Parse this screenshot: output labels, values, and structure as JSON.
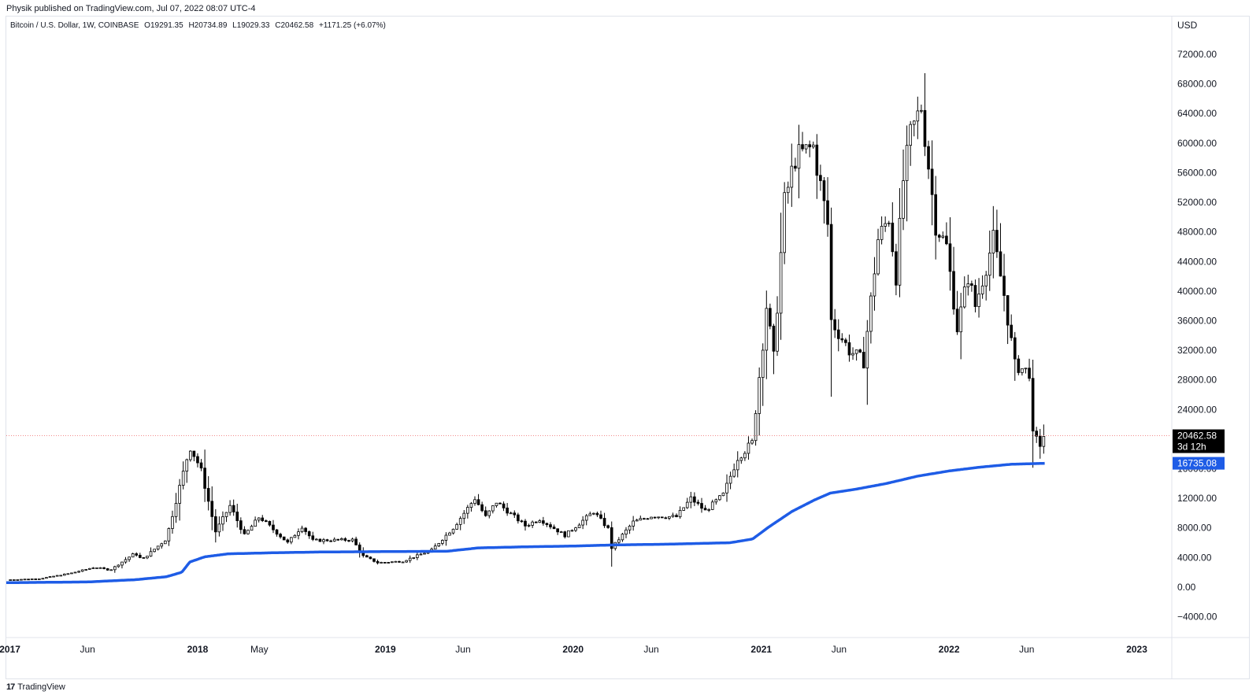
{
  "header": {
    "published": "Physik published on TradingView.com, Jul 07, 2022 08:07 UTC-4"
  },
  "legend": {
    "symbol": "Bitcoin / U.S. Dollar, 1W, COINBASE",
    "open": "O19291.35",
    "high": "H20734.89",
    "low": "L19029.33",
    "close": "C20462.58",
    "change": "+1171.25 (+6.07%)"
  },
  "footer": {
    "brand": "TradingView"
  },
  "colors": {
    "candle": "#000000",
    "ma_line": "#1e5ce6",
    "price_line": "#f28b8b",
    "ma_label_bg": "#1e5ce6",
    "price_label_bg": "#000000"
  },
  "chart_data": {
    "type": "candlestick",
    "currency_label": "USD",
    "y_ticks": [
      72000,
      68000,
      64000,
      60000,
      56000,
      52000,
      48000,
      44000,
      40000,
      36000,
      32000,
      28000,
      24000,
      20000,
      16000,
      12000,
      8000,
      4000,
      0,
      -4000
    ],
    "y_tick_labels": [
      "72000.00",
      "68000.00",
      "64000.00",
      "60000.00",
      "56000.00",
      "52000.00",
      "48000.00",
      "44000.00",
      "40000.00",
      "36000.00",
      "32000.00",
      "28000.00",
      "24000.00",
      "20000.00",
      "16000.00",
      "12000.00",
      "8000.00",
      "4000.00",
      "0.00",
      "−4000.00"
    ],
    "ylim": [
      -6600,
      77000
    ],
    "xlim": [
      "2016-12-25",
      "2023-03-07"
    ],
    "x_ticks": [
      {
        "date": "2017-01-01",
        "label": "2017",
        "bold": true
      },
      {
        "date": "2017-06-01",
        "label": "Jun",
        "bold": false
      },
      {
        "date": "2018-01-01",
        "label": "2018",
        "bold": true
      },
      {
        "date": "2018-05-01",
        "label": "May",
        "bold": false
      },
      {
        "date": "2019-01-01",
        "label": "2019",
        "bold": true
      },
      {
        "date": "2019-06-01",
        "label": "Jun",
        "bold": false
      },
      {
        "date": "2020-01-01",
        "label": "2020",
        "bold": true
      },
      {
        "date": "2020-06-01",
        "label": "Jun",
        "bold": false
      },
      {
        "date": "2021-01-01",
        "label": "2021",
        "bold": true
      },
      {
        "date": "2021-06-01",
        "label": "Jun",
        "bold": false
      },
      {
        "date": "2022-01-01",
        "label": "2022",
        "bold": true
      },
      {
        "date": "2022-06-01",
        "label": "Jun",
        "bold": false
      },
      {
        "date": "2023-01-01",
        "label": "2023",
        "bold": true
      }
    ],
    "price_anchors": [
      [
        "2017-01-01",
        1000
      ],
      [
        "2017-03-01",
        1150
      ],
      [
        "2017-05-01",
        1900
      ],
      [
        "2017-06-15",
        2700
      ],
      [
        "2017-07-15",
        2300
      ],
      [
        "2017-09-01",
        4600
      ],
      [
        "2017-09-15",
        3700
      ],
      [
        "2017-11-01",
        6500
      ],
      [
        "2017-12-17",
        19000
      ],
      [
        "2018-01-07",
        16000
      ],
      [
        "2018-02-05",
        7500
      ],
      [
        "2018-03-05",
        11000
      ],
      [
        "2018-04-02",
        7000
      ],
      [
        "2018-05-01",
        9500
      ],
      [
        "2018-06-25",
        6000
      ],
      [
        "2018-07-23",
        8200
      ],
      [
        "2018-08-13",
        6300
      ],
      [
        "2018-10-29",
        6400
      ],
      [
        "2018-11-19",
        4200
      ],
      [
        "2018-12-17",
        3300
      ],
      [
        "2019-02-04",
        3500
      ],
      [
        "2019-04-01",
        5000
      ],
      [
        "2019-05-13",
        8000
      ],
      [
        "2019-06-24",
        12000
      ],
      [
        "2019-07-15",
        9500
      ],
      [
        "2019-08-05",
        11500
      ],
      [
        "2019-09-30",
        8300
      ],
      [
        "2019-10-28",
        9200
      ],
      [
        "2019-12-16",
        7000
      ],
      [
        "2020-02-10",
        10200
      ],
      [
        "2020-03-09",
        7900
      ],
      [
        "2020-03-16",
        5300
      ],
      [
        "2020-04-27",
        8800
      ],
      [
        "2020-06-01",
        9600
      ],
      [
        "2020-07-20",
        9500
      ],
      [
        "2020-08-17",
        12000
      ],
      [
        "2020-09-14",
        10300
      ],
      [
        "2020-10-19",
        12500
      ],
      [
        "2020-11-16",
        17500
      ],
      [
        "2020-12-14",
        19500
      ],
      [
        "2021-01-04",
        33000
      ],
      [
        "2021-01-11",
        38000
      ],
      [
        "2021-01-25",
        31000
      ],
      [
        "2021-02-15",
        52000
      ],
      [
        "2021-03-08",
        58000
      ],
      [
        "2021-04-12",
        59500
      ],
      [
        "2021-05-10",
        49000
      ],
      [
        "2021-05-17",
        36000
      ],
      [
        "2021-06-21",
        32000
      ],
      [
        "2021-07-19",
        30500
      ],
      [
        "2021-08-16",
        47000
      ],
      [
        "2021-09-06",
        50000
      ],
      [
        "2021-09-20",
        42000
      ],
      [
        "2021-10-04",
        55000
      ],
      [
        "2021-10-18",
        61000
      ],
      [
        "2021-11-08",
        65000
      ],
      [
        "2021-11-22",
        57000
      ],
      [
        "2021-12-06",
        49000
      ],
      [
        "2021-12-27",
        46000
      ],
      [
        "2022-01-17",
        35000
      ],
      [
        "2022-02-07",
        42000
      ],
      [
        "2022-02-21",
        38000
      ],
      [
        "2022-03-28",
        47000
      ],
      [
        "2022-04-18",
        39500
      ],
      [
        "2022-05-09",
        30000
      ],
      [
        "2022-06-06",
        29000
      ],
      [
        "2022-06-13",
        20500
      ],
      [
        "2022-06-27",
        19300
      ],
      [
        "2022-07-04",
        20462
      ]
    ],
    "ma_anchors": [
      [
        "2016-12-25",
        600
      ],
      [
        "2017-06-01",
        700
      ],
      [
        "2017-09-01",
        1000
      ],
      [
        "2017-11-01",
        1400
      ],
      [
        "2017-12-01",
        2000
      ],
      [
        "2017-12-17",
        3400
      ],
      [
        "2018-01-15",
        4100
      ],
      [
        "2018-03-01",
        4500
      ],
      [
        "2018-06-01",
        4650
      ],
      [
        "2018-09-01",
        4750
      ],
      [
        "2019-01-01",
        4800
      ],
      [
        "2019-05-01",
        4850
      ],
      [
        "2019-07-01",
        5300
      ],
      [
        "2019-10-01",
        5450
      ],
      [
        "2020-01-01",
        5550
      ],
      [
        "2020-03-20",
        5700
      ],
      [
        "2020-07-01",
        5800
      ],
      [
        "2020-11-01",
        6000
      ],
      [
        "2020-12-15",
        6500
      ],
      [
        "2021-01-15",
        8100
      ],
      [
        "2021-03-01",
        10200
      ],
      [
        "2021-04-15",
        11800
      ],
      [
        "2021-05-15",
        12700
      ],
      [
        "2021-07-01",
        13200
      ],
      [
        "2021-09-01",
        14000
      ],
      [
        "2021-11-01",
        15000
      ],
      [
        "2022-01-01",
        15700
      ],
      [
        "2022-03-01",
        16200
      ],
      [
        "2022-05-01",
        16600
      ],
      [
        "2022-07-07",
        16735.08
      ]
    ],
    "last_price": 20462.58,
    "last_price_label": "20462.58",
    "countdown_label": "3d 12h",
    "ma_value": 16735.08,
    "ma_label": "16735.08"
  }
}
